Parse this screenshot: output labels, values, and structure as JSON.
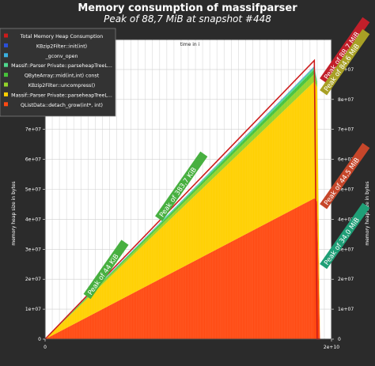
{
  "chart_data": {
    "type": "area",
    "title": "Memory consumption of massifparser",
    "subtitle": "Peak of 88,7 MiB at snapshot #448",
    "xlabel": "time in i",
    "ylabel": "memory heap size in bytes",
    "xlim": [
      0,
      20000000000
    ],
    "ylim": [
      0,
      100000000
    ],
    "x_tick_labels": [
      "0",
      "2e+10"
    ],
    "y_tick_labels": [
      "0",
      "1e+07",
      "2e+07",
      "3e+07",
      "4e+07",
      "5e+07",
      "6e+07",
      "7e+07",
      "8e+07",
      "9e+07"
    ],
    "y_tick_values": [
      0,
      10000000,
      20000000,
      30000000,
      40000000,
      50000000,
      60000000,
      70000000,
      80000000,
      90000000
    ],
    "grid": true,
    "legend_position": "top-left",
    "x": [
      0,
      18800000000,
      19000000000,
      19200000000
    ],
    "series": [
      {
        "name": "QListData::detach_grow(int*, int)",
        "color": "#ff4a12",
        "values": [
          0,
          47000000,
          46000000,
          0
        ]
      },
      {
        "name": "Massif::Parser Private::parseheapTreeL...",
        "color": "#ffd000",
        "values": [
          0,
          39000000,
          38000000,
          0
        ]
      },
      {
        "name": "KBzip2Filter::uncompress()",
        "color": "#94d42a",
        "values": [
          0,
          2500000,
          1000000,
          0
        ]
      },
      {
        "name": "QByteArray::mid(int,int) const",
        "color": "#47c23a",
        "values": [
          0,
          1500000,
          500000,
          0
        ]
      },
      {
        "name": "Massif::Parser Private::parseheapTreeL...",
        "color": "#4fd88e",
        "values": [
          0,
          800000,
          300000,
          0
        ]
      },
      {
        "name": "_gconv_open",
        "color": "#3ab0e0",
        "values": [
          0,
          200000,
          100000,
          0
        ]
      },
      {
        "name": "KBzip2Filter::init(int)",
        "color": "#2a4fd8",
        "values": [
          0,
          100000,
          50000,
          0
        ]
      },
      {
        "name": "Total Memory Heap Consumption",
        "color": "#cc1a1a",
        "values": [
          0,
          93000000,
          0,
          0
        ]
      }
    ],
    "annotations": [
      {
        "text": "Peak of 88,7 MiB",
        "color": "#c21f2a",
        "x": 19500000000,
        "y": 86000000
      },
      {
        "text": "Peak of 84,6 MiB",
        "color": "#a8a025",
        "x": 19500000000,
        "y": 82000000
      },
      {
        "text": "Peak of 44,5 MiB",
        "color": "#c6462a",
        "x": 19500000000,
        "y": 44000000
      },
      {
        "text": "Peak of 34,0 MiB",
        "color": "#1f9f77",
        "x": 19500000000,
        "y": 24000000
      },
      {
        "text": "Peak of 383,7 KiB",
        "color": "#48b040",
        "x": 8000000000,
        "y": 40000000
      },
      {
        "text": "Peak of 44 KiB",
        "color": "#48b040",
        "x": 3000000000,
        "y": 14000000
      }
    ]
  }
}
